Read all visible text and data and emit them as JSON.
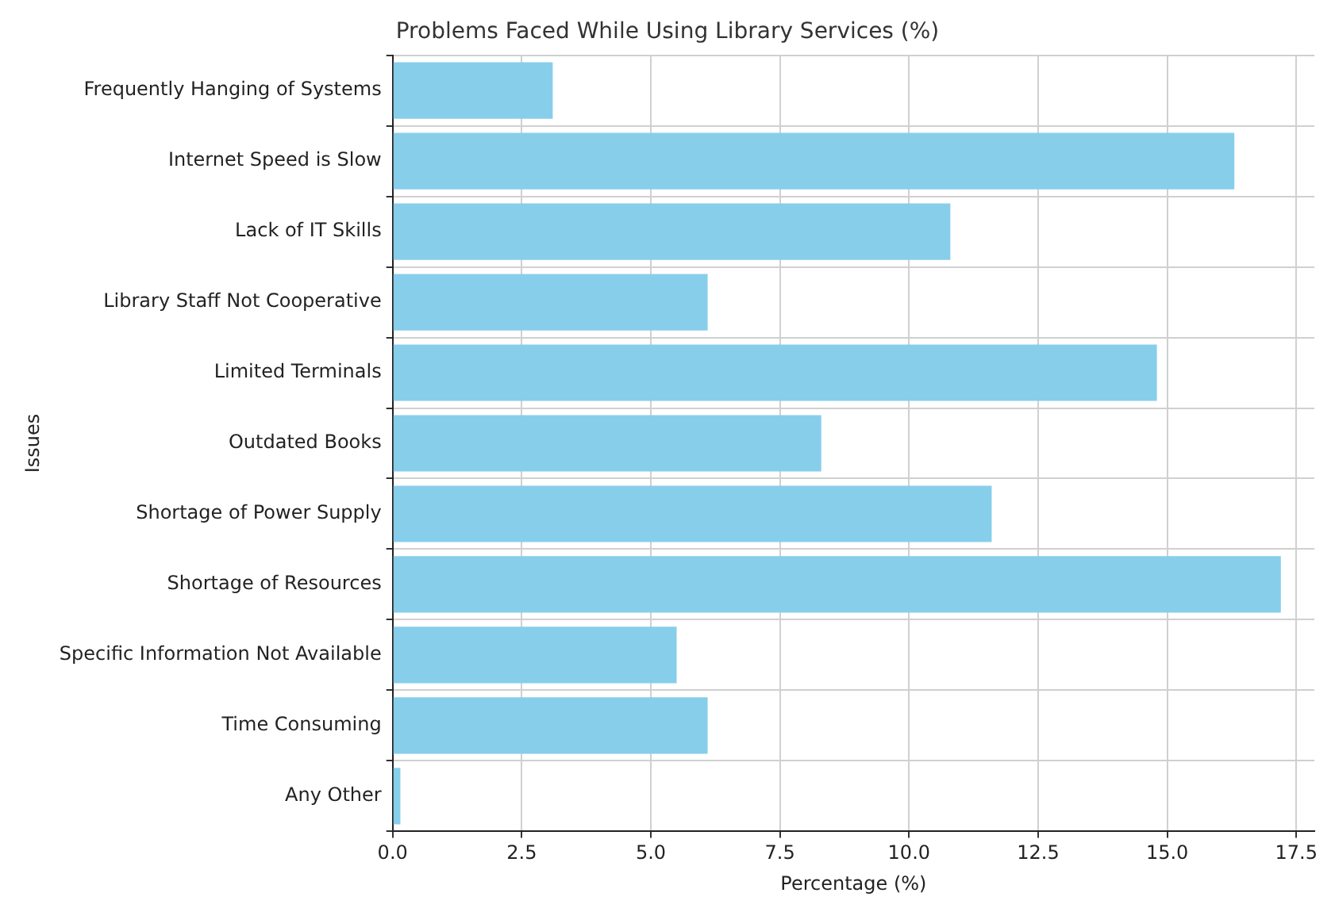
{
  "chart_data": {
    "type": "bar",
    "orientation": "horizontal",
    "title": "Problems Faced While Using Library Services (%)",
    "xlabel": "Percentage (%)",
    "ylabel": "Issues",
    "categories": [
      "Frequently Hanging of Systems",
      "Internet Speed is Slow",
      "Lack of IT Skills",
      "Library Staff Not Cooperative",
      "Limited Terminals",
      "Outdated Books",
      "Shortage of Power Supply",
      "Shortage of Resources",
      "Specific Information Not Available",
      "Time Consuming",
      "Any Other"
    ],
    "values": [
      3.1,
      16.3,
      10.8,
      6.1,
      14.8,
      8.3,
      11.6,
      17.2,
      5.5,
      6.1,
      0.15
    ],
    "color": "#87ceeb",
    "xlim": [
      0,
      17.85
    ],
    "xticks": [
      {
        "value": 0,
        "label": "0.0"
      },
      {
        "value": 2.5,
        "label": "2.5"
      },
      {
        "value": 5,
        "label": "5.0"
      },
      {
        "value": 7.5,
        "label": "7.5"
      },
      {
        "value": 10,
        "label": "10.0"
      },
      {
        "value": 12.5,
        "label": "12.5"
      },
      {
        "value": 15,
        "label": "15.0"
      },
      {
        "value": 17.5,
        "label": "17.5"
      }
    ],
    "grid": true,
    "legend": false
  }
}
